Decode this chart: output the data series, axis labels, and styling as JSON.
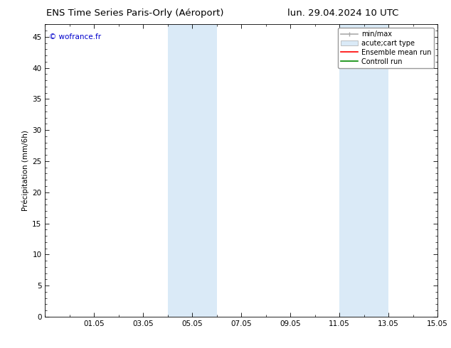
{
  "title_left": "ENS Time Series Paris-Orly (Aéroport)",
  "title_right": "lun. 29.04.2024 10 UTC",
  "ylabel": "Précipitation (mm/6h)",
  "ylim": [
    0,
    47
  ],
  "yticks": [
    0,
    5,
    10,
    15,
    20,
    25,
    30,
    35,
    40,
    45
  ],
  "xtick_labels": [
    "01.05",
    "03.05",
    "05.05",
    "07.05",
    "09.05",
    "11.05",
    "13.05",
    "15.05"
  ],
  "xtick_positions": [
    2,
    4,
    6,
    8,
    10,
    12,
    14,
    16
  ],
  "xlim": [
    0,
    16
  ],
  "shaded_regions": [
    {
      "x_start": 5.0,
      "x_end": 6.0,
      "color": "#daeaf7"
    },
    {
      "x_start": 6.0,
      "x_end": 7.0,
      "color": "#daeaf7"
    },
    {
      "x_start": 12.0,
      "x_end": 13.0,
      "color": "#daeaf7"
    },
    {
      "x_start": 13.0,
      "x_end": 14.0,
      "color": "#daeaf7"
    }
  ],
  "watermark_text": "© wofrance.fr",
  "watermark_color": "#0000cc",
  "background_color": "#ffffff",
  "font_size": 7.5,
  "title_font_size": 9.5,
  "legend_font_size": 7,
  "ylabel_font_size": 7.5,
  "minmax_color": "#aaaaaa",
  "band_color": "#daeaf7",
  "band_edge_color": "#aaaaaa",
  "ens_color": "#ff0000",
  "ctrl_color": "#008800"
}
